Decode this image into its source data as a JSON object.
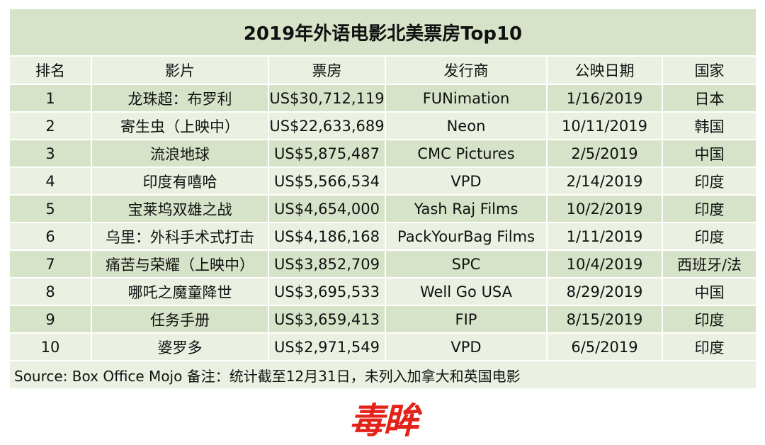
{
  "title": "2019年外语电影北美票房Top10",
  "columns": [
    "排名",
    "影片",
    "票房",
    "发行商",
    "公映日期",
    "国家"
  ],
  "rows": [
    [
      "1",
      "龙珠超：布罗利",
      "US$30,712,119",
      "FUNimation",
      "1/16/2019",
      "日本"
    ],
    [
      "2",
      "寄生虫（上映中）",
      "US$22,633,689",
      "Neon",
      "10/11/2019",
      "韩国"
    ],
    [
      "3",
      "流浪地球",
      "US$5,875,487",
      "CMC Pictures",
      "2/5/2019",
      "中国"
    ],
    [
      "4",
      "印度有嘻哈",
      "US$5,566,534",
      "VPD",
      "2/14/2019",
      "印度"
    ],
    [
      "5",
      "宝莱坞双雄之战",
      "US$4,654,000",
      "Yash Raj Films",
      "10/2/2019",
      "印度"
    ],
    [
      "6",
      "乌里：外科手术式打击",
      "US$4,186,168",
      "PackYourBag Films",
      "1/11/2019",
      "印度"
    ],
    [
      "7",
      "痛苦与荣耀（上映中）",
      "US$3,852,709",
      "SPC",
      "10/4/2019",
      "西班牙/法"
    ],
    [
      "8",
      "哪吒之魔童降世",
      "US$3,695,533",
      "Well Go USA",
      "8/29/2019",
      "中国"
    ],
    [
      "9",
      "任务手册",
      "US$3,659,413",
      "FIP",
      "8/15/2019",
      "印度"
    ],
    [
      "10",
      "婆罗多",
      "US$2,971,549",
      "VPD",
      "6/5/2019",
      "印度"
    ]
  ],
  "footer": "Source: Box Office Mojo 备注：统计截至12月31日，未列入加拿大和英国电影",
  "logo": {
    "text": "毒眸",
    "color": "#e2231a"
  }
}
